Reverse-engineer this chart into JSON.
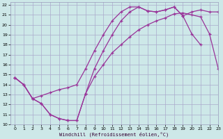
{
  "xlabel": "Windchill (Refroidissement éolien,°C)",
  "bg_color": "#cde8e8",
  "grid_color": "#aaaacc",
  "line_color": "#993399",
  "xlim": [
    -0.5,
    23
  ],
  "ylim": [
    10,
    22.3
  ],
  "xticks": [
    0,
    1,
    2,
    3,
    4,
    5,
    6,
    7,
    8,
    9,
    10,
    11,
    12,
    13,
    14,
    15,
    16,
    17,
    18,
    19,
    20,
    21,
    22,
    23
  ],
  "yticks": [
    10,
    11,
    12,
    13,
    14,
    15,
    16,
    17,
    18,
    19,
    20,
    21,
    22
  ],
  "curve_bottom_x": [
    0,
    1,
    2,
    3,
    4,
    5,
    6,
    7,
    8,
    9,
    10,
    11,
    12,
    13,
    14,
    15,
    16,
    17,
    18,
    19,
    20,
    21,
    22,
    23
  ],
  "curve_bottom_y": [
    14.7,
    14.0,
    12.6,
    12.1,
    11.0,
    10.6,
    10.4,
    10.4,
    13.1,
    14.8,
    16.0,
    17.2,
    18.0,
    18.8,
    19.5,
    20.0,
    20.4,
    20.7,
    21.1,
    21.2,
    21.0,
    20.8,
    19.1,
    15.6
  ],
  "curve_upper_x": [
    0,
    1,
    2,
    3,
    4,
    5,
    6,
    7,
    8,
    9,
    10,
    11,
    12,
    13,
    14,
    15,
    16,
    17,
    18,
    19,
    20,
    21,
    22,
    23
  ],
  "curve_upper_y": [
    14.7,
    14.0,
    12.6,
    12.9,
    13.2,
    13.5,
    13.7,
    14.0,
    15.6,
    17.4,
    19.0,
    20.4,
    21.3,
    21.8,
    21.8,
    21.4,
    21.3,
    21.5,
    21.8,
    20.9,
    21.3,
    21.5,
    21.3,
    21.3
  ],
  "curve_steep_x": [
    0,
    1,
    2,
    3,
    4,
    5,
    6,
    7,
    8,
    9,
    10,
    11,
    12,
    13,
    14,
    15,
    16,
    17,
    18,
    19,
    20,
    21
  ],
  "curve_steep_y": [
    14.7,
    14.0,
    12.6,
    12.1,
    11.0,
    10.6,
    10.4,
    10.4,
    13.1,
    15.6,
    17.4,
    19.0,
    20.4,
    21.3,
    21.8,
    21.4,
    21.3,
    21.5,
    21.8,
    20.9,
    19.1,
    18.0
  ]
}
